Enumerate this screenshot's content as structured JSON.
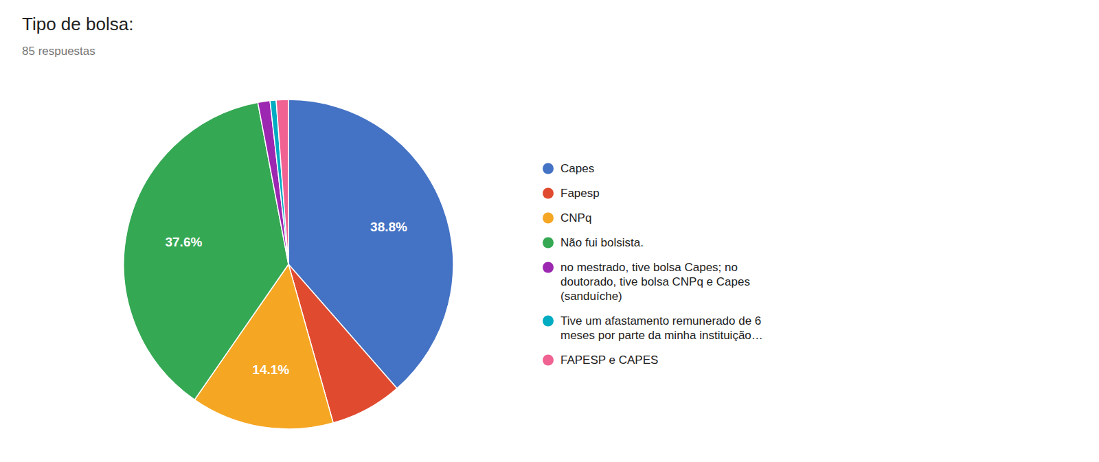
{
  "chart_data": {
    "type": "pie",
    "title": "Tipo de bolsa:",
    "subtitle": "85 respuestas",
    "categories": [
      "Capes",
      "Fapesp",
      "CNPq",
      "Não fui bolsista.",
      "no mestrado, tive bolsa Capes; no\ndoutorado, tive bolsa CNPq e Capes\n(sanduíche)",
      "Tive um afastamento remunerado de 6\nmeses por parte da minha instituição…",
      "FAPESP e CAPES"
    ],
    "values": [
      38.8,
      7.1,
      14.1,
      37.6,
      1.2,
      0.6,
      1.2
    ],
    "value_labels": [
      "38.8%",
      null,
      "14.1%",
      "37.6%",
      null,
      null,
      null
    ],
    "colors": [
      "#4472c4",
      "#e04a2f",
      "#f5a623",
      "#34a853",
      "#9c27b0",
      "#00acc1",
      "#f06292"
    ],
    "data_labels": true,
    "legend": "right"
  }
}
